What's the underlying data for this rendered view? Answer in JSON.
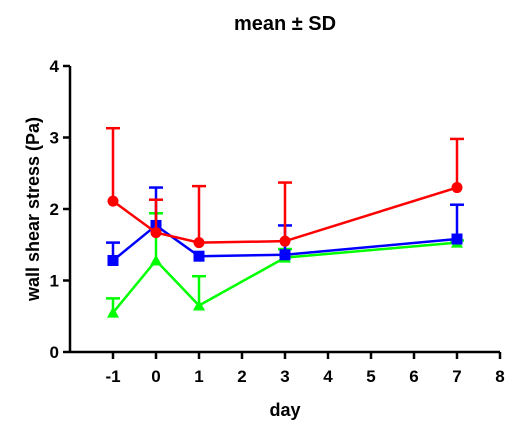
{
  "chart_data": {
    "type": "line",
    "title": "mean ± SD",
    "xlabel": "day",
    "ylabel": "wall shear stress (Pa)",
    "xlim": [
      -2,
      8
    ],
    "ylim": [
      0,
      4
    ],
    "x_ticks": [
      "-1",
      "0",
      "1",
      "2",
      "3",
      "4",
      "5",
      "6",
      "7",
      "8"
    ],
    "y_ticks": [
      "0",
      "1",
      "2",
      "3",
      "4"
    ],
    "grid": false,
    "error_bars": "upper SD",
    "series": [
      {
        "color": "#00ff00",
        "marker": "triangle",
        "x": [
          -1,
          0,
          1,
          3,
          7
        ],
        "y": [
          0.55,
          1.28,
          0.65,
          1.32,
          1.53
        ],
        "err": [
          0.2,
          0.66,
          0.41,
          0.12,
          0.03
        ]
      },
      {
        "color": "#0000ff",
        "marker": "square",
        "x": [
          -1,
          0,
          1,
          3,
          7
        ],
        "y": [
          1.28,
          1.77,
          1.34,
          1.36,
          1.58
        ],
        "err": [
          0.25,
          0.53,
          0.0,
          0.41,
          0.48
        ]
      },
      {
        "color": "#ff0000",
        "marker": "circle",
        "x": [
          -1,
          0,
          1,
          3,
          7
        ],
        "y": [
          2.11,
          1.67,
          1.53,
          1.55,
          2.3
        ],
        "err": [
          1.02,
          0.46,
          0.79,
          0.82,
          0.68
        ]
      }
    ]
  }
}
